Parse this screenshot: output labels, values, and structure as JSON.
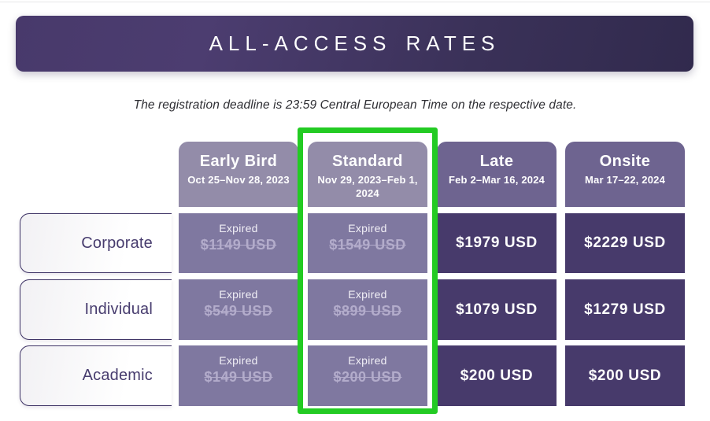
{
  "page": {
    "banner_title": "ALL-ACCESS RATES",
    "subtitle": "The registration deadline is 23:59 Central European Time on the respective date."
  },
  "table": {
    "columns": [
      {
        "label": "Early Bird",
        "dates": "Oct 25–Nov 28, 2023",
        "state": "expired"
      },
      {
        "label": "Standard",
        "dates": "Nov 29, 2023–Feb 1, 2024",
        "state": "expired"
      },
      {
        "label": "Late",
        "dates": "Feb 2–Mar 16, 2024",
        "state": "active"
      },
      {
        "label": "Onsite",
        "dates": "Mar 17–22, 2024",
        "state": "active"
      }
    ],
    "rows": [
      {
        "label": "Corporate",
        "cells": [
          {
            "status": "Expired",
            "price": "$1149 USD"
          },
          {
            "status": "Expired",
            "price": "$1549 USD"
          },
          {
            "price": "$1979 USD"
          },
          {
            "price": "$2229 USD"
          }
        ]
      },
      {
        "label": "Individual",
        "cells": [
          {
            "status": "Expired",
            "price": "$549 USD"
          },
          {
            "status": "Expired",
            "price": "$899 USD"
          },
          {
            "price": "$1079 USD"
          },
          {
            "price": "$1279 USD"
          }
        ]
      },
      {
        "label": "Academic",
        "cells": [
          {
            "status": "Expired",
            "price": "$149 USD"
          },
          {
            "status": "Expired",
            "price": "$200 USD"
          },
          {
            "price": "$200 USD"
          },
          {
            "price": "$200 USD"
          }
        ]
      }
    ]
  },
  "annotation": {
    "type": "highlight-box",
    "highlighted_column": "Standard",
    "color": "#23cb23"
  },
  "colors": {
    "banner_gradient_left": "#48396b",
    "banner_gradient_right": "#312a4d",
    "header_expired_bg": "#938ca9",
    "header_active_bg": "#6e6490",
    "expired_cell_bg": "#7f78a0",
    "active_cell_bg": "#473a6b",
    "struck_price_text": "#b3accb",
    "row_label_text": "#473c6e",
    "highlight_green": "#23cb23"
  }
}
